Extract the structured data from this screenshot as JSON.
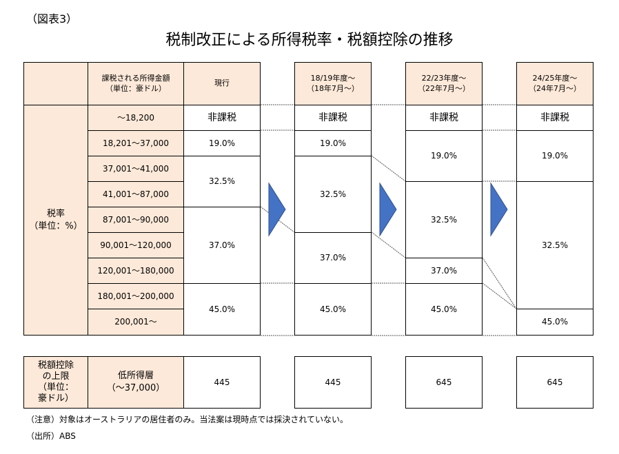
{
  "fig_label": "（図表3）",
  "title": "税制改正による所得税率・税額控除の推移",
  "header": {
    "income_col": "課税される所得金額\n（単位：豪ドル）",
    "current": "現行",
    "p1": "18/19年度～\n（18年7月～）",
    "p2": "22/23年度～\n（22年7月～）",
    "p3": "24/25年度～\n（24年7月～）"
  },
  "rate_label": "税率\n（単位：%）",
  "brackets": [
    "～18,200",
    "18,201～37,000",
    "37,001～41,000",
    "41,001～87,000",
    "87,001～90,000",
    "90,001～120,000",
    "120,001～180,000",
    "180,001～200,000",
    "200,001～"
  ],
  "rates": {
    "current": [
      "非課税",
      "19.0%",
      "32.5%",
      "37.0%",
      "45.0%"
    ],
    "p1": [
      "非課税",
      "19.0%",
      "32.5%",
      "37.0%",
      "45.0%"
    ],
    "p2": [
      "非課税",
      "19.0%",
      "32.5%",
      "37.0%",
      "45.0%"
    ],
    "p3": [
      "非課税",
      "19.0%",
      "32.5%",
      "45.0%"
    ]
  },
  "offset": {
    "label": "税額控除\nの上限\n（単位：\n豪ドル）",
    "category": "低所得層\n（～37,000）",
    "values": [
      "445",
      "445",
      "645",
      "645"
    ]
  },
  "note": "（注意）対象はオーストラリアの居住者のみ。当法案は現時点では採決されていない。",
  "source": "（出所）ABS",
  "colors": {
    "header_fill": "#fde9d9",
    "arrow_fill": "#4472c4",
    "border": "#000000"
  }
}
